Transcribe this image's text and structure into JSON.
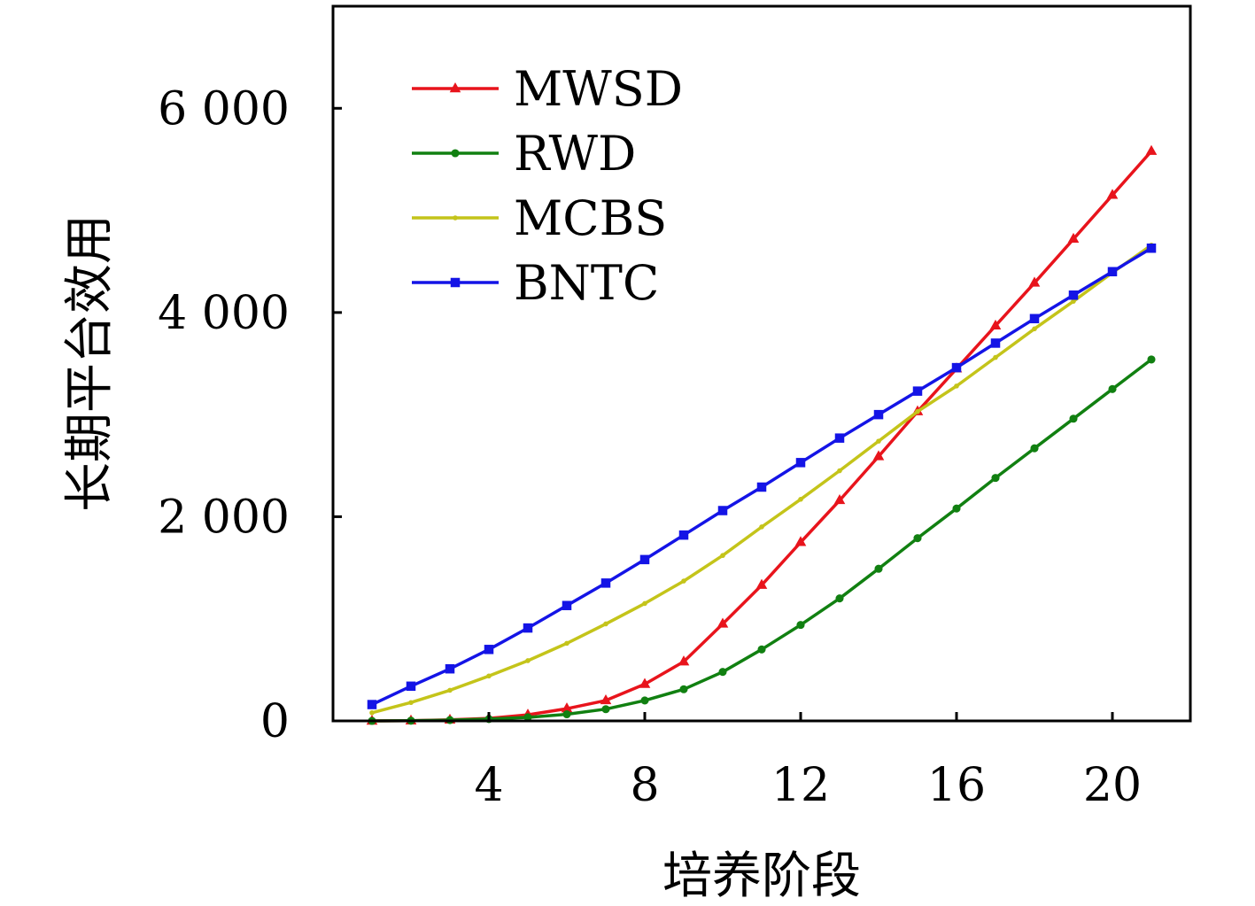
{
  "chart_data": {
    "type": "line",
    "xlabel": "培养阶段",
    "ylabel": "长期平台效用",
    "xlim": [
      0,
      22
    ],
    "ylim": [
      0,
      7000
    ],
    "xticks": [
      4,
      8,
      12,
      16,
      20
    ],
    "xtick_labels": [
      "4",
      "8",
      "12",
      "16",
      "20"
    ],
    "yticks": [
      0,
      2000,
      4000,
      6000
    ],
    "ytick_labels": [
      "0",
      "2 000",
      "4 000",
      "6 000"
    ],
    "legend_position": "top-left",
    "grid": false,
    "x": [
      1,
      2,
      3,
      4,
      5,
      6,
      7,
      8,
      9,
      10,
      11,
      12,
      13,
      14,
      15,
      16,
      17,
      18,
      19,
      20,
      21
    ],
    "series": [
      {
        "name": "MWSD",
        "color": "#e8141c",
        "marker": "triangle",
        "values": [
          0,
          2,
          10,
          25,
          60,
          120,
          200,
          360,
          580,
          950,
          1330,
          1750,
          2160,
          2590,
          3030,
          3450,
          3870,
          4290,
          4720,
          5150,
          5580
        ]
      },
      {
        "name": "RWD",
        "color": "#118011",
        "marker": "circle",
        "values": [
          0,
          2,
          8,
          18,
          35,
          65,
          115,
          200,
          310,
          480,
          700,
          940,
          1200,
          1490,
          1790,
          2080,
          2380,
          2670,
          2960,
          3250,
          3540
        ]
      },
      {
        "name": "MCBS",
        "color": "#c4c41a",
        "marker": "dot",
        "values": [
          80,
          180,
          300,
          440,
          590,
          760,
          950,
          1150,
          1370,
          1620,
          1900,
          2170,
          2450,
          2740,
          3030,
          3280,
          3560,
          3840,
          4110,
          4390,
          4660
        ]
      },
      {
        "name": "BNTC",
        "color": "#1414e6",
        "marker": "square",
        "values": [
          160,
          340,
          510,
          700,
          910,
          1130,
          1350,
          1580,
          1820,
          2060,
          2290,
          2530,
          2770,
          3000,
          3230,
          3460,
          3700,
          3940,
          4170,
          4400,
          4630
        ]
      }
    ]
  }
}
